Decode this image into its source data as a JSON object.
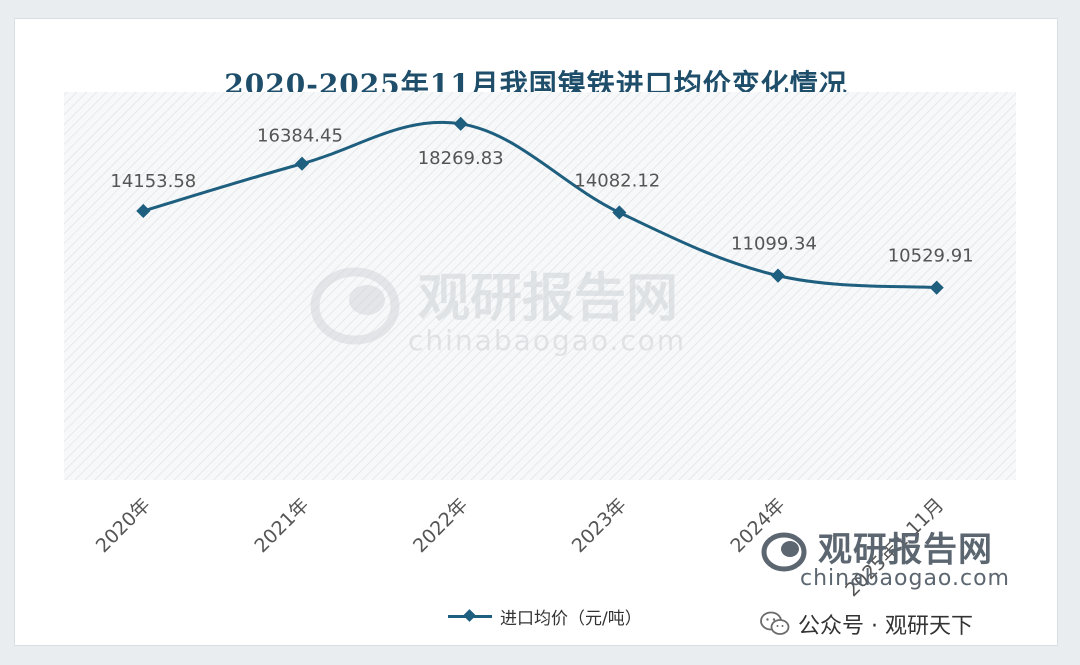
{
  "chart_data": {
    "type": "line",
    "title": "2020-2025年11月我国镍铁进口均价变化情况",
    "categories": [
      "2020年",
      "2021年",
      "2022年",
      "2023年",
      "2024年",
      "2025年1-11月"
    ],
    "series": [
      {
        "name": "进口均价（元/吨）",
        "values": [
          14153.58,
          16384.45,
          18269.83,
          14082.12,
          11099.34,
          10529.91
        ],
        "labels": [
          "14153.58",
          "16384.45",
          "18269.83",
          "14082.12",
          "11099.34",
          "10529.91"
        ]
      }
    ],
    "ylim": [
      0,
      20000
    ],
    "smooth": true,
    "grid": false,
    "legend": "bottom-center",
    "line_color": "#1e5f7f",
    "plot_background": "hatched light gray"
  },
  "watermark": {
    "brand": "观研报告网",
    "site": "chinabaogao.com"
  },
  "corner_overlay": {
    "brand": "观研报告网",
    "site": "chinabaogao.com",
    "wechat_text": "公众号 · 观研天下",
    "icon": "wechat-icon"
  }
}
